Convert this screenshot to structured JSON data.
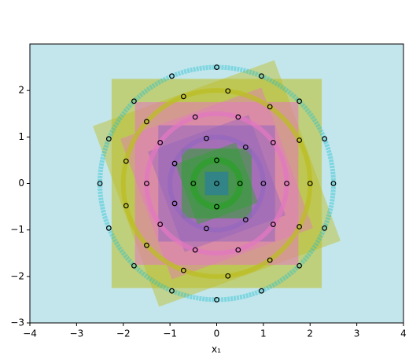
{
  "chart_data": {
    "type": "scatter",
    "xlabel": "x₁",
    "xlim": [
      -4,
      4
    ],
    "ylim": [
      -3,
      3
    ],
    "xticks": [
      {
        "value": -4,
        "label": "−4"
      },
      {
        "value": -3,
        "label": "−3"
      },
      {
        "value": -2,
        "label": "−2"
      },
      {
        "value": -1,
        "label": "−1"
      },
      0,
      1,
      2,
      3,
      4
    ],
    "yticks": [
      {
        "value": -3,
        "label": "−3"
      },
      {
        "value": -2,
        "label": "−2"
      },
      {
        "value": -1,
        "label": "−1"
      },
      0,
      1,
      2
    ],
    "background": "#c3e6ec",
    "series": [
      {
        "color": "#1f77b4",
        "x": [
          0
        ],
        "y": [
          0
        ]
      },
      {
        "color": "#2ca02c",
        "x": [
          0.5,
          0,
          -0.5,
          0
        ],
        "y": [
          0,
          0.5,
          0,
          -0.5
        ]
      },
      {
        "color": "#9467bd",
        "x": [
          1,
          0.62,
          -0.22,
          -0.9,
          -0.9,
          -0.22,
          0.62
        ],
        "y": [
          0,
          0.78,
          0.97,
          0.43,
          -0.43,
          -0.97,
          -0.78
        ]
      },
      {
        "color": "#e377c2",
        "x": [
          1.5,
          1.21,
          0.46,
          -0.46,
          -1.21,
          -1.5,
          -1.21,
          -0.46,
          0.46,
          1.21
        ],
        "y": [
          0,
          0.88,
          1.43,
          1.43,
          0.88,
          0,
          -0.88,
          -1.43,
          -1.43,
          -0.88
        ]
      },
      {
        "color": "#bcbd22",
        "x": [
          2,
          1.77,
          1.14,
          0.24,
          -0.71,
          -1.5,
          -1.94,
          -1.94,
          -1.5,
          -0.71,
          0.24,
          1.14,
          1.77
        ],
        "y": [
          0,
          0.93,
          1.65,
          1.99,
          1.87,
          1.33,
          0.48,
          -0.48,
          -1.33,
          -1.87,
          -1.99,
          -1.65,
          -0.93
        ]
      },
      {
        "color": "#17becf",
        "x": [
          2.5,
          2.31,
          1.77,
          0.96,
          0,
          -0.96,
          -1.77,
          -2.31,
          -2.5,
          -2.31,
          -1.77,
          -0.96,
          0,
          0.96,
          1.77,
          2.31
        ],
        "y": [
          0,
          0.96,
          1.77,
          2.31,
          2.5,
          2.31,
          1.77,
          0.96,
          0,
          -0.96,
          -1.77,
          -2.31,
          -2.5,
          -2.31,
          -1.77,
          -0.96
        ]
      }
    ]
  }
}
